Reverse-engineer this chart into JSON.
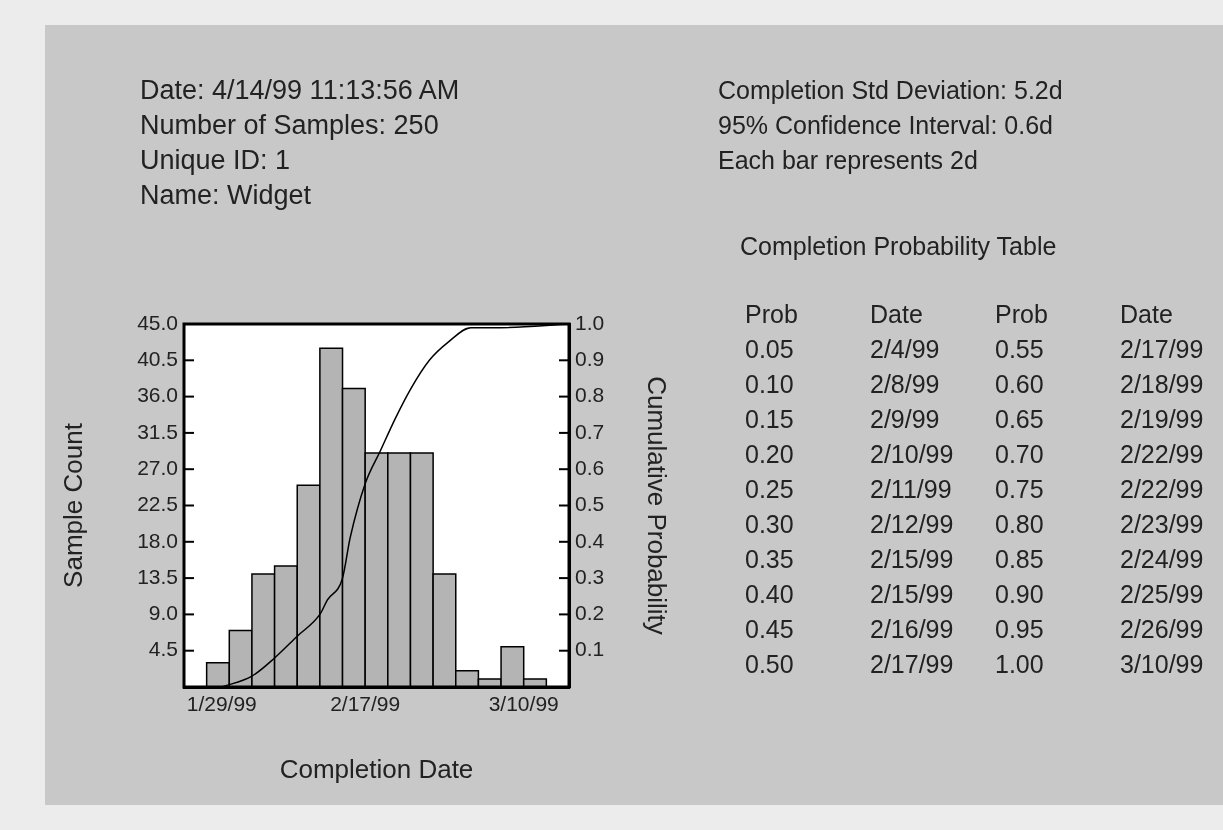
{
  "chart_data": [
    {
      "type": "histogram",
      "xlabel": "Completion Date",
      "ylabel": "Sample Count",
      "y2label": "Cumulative Probability",
      "annotations": [
        "Date: 4/14/99 11:13:56 AM",
        "Number of Samples: 250",
        "Unique ID: 1",
        "Name: Widget",
        "Completion Std Deviation: 5.2d",
        "95% Confidence Interval: 0.6d",
        "Each bar represents 2d"
      ],
      "xlim": [
        "1999-01-24",
        "1999-03-16"
      ],
      "xticks": [
        {
          "value": "1999-01-29",
          "label": "1/29/99"
        },
        {
          "value": "1999-02-17",
          "label": "2/17/99"
        },
        {
          "value": "1999-03-10",
          "label": "3/10/99"
        }
      ],
      "ylim": [
        0,
        45
      ],
      "yticks": [
        4.5,
        {
          "value": 9,
          "label": "9.0"
        },
        13.5,
        {
          "value": 18,
          "label": "18.0"
        },
        22.5,
        {
          "value": 27,
          "label": "27.0"
        },
        31.5,
        {
          "value": 36,
          "label": "36.0"
        },
        40.5,
        {
          "value": 45,
          "label": "45.0"
        }
      ],
      "y2lim": [
        0,
        1
      ],
      "y2ticks": [
        0.1,
        0.2,
        0.3,
        0.4,
        0.5,
        0.6,
        0.7,
        0.8,
        0.9,
        {
          "value": 1,
          "label": "1.0"
        }
      ],
      "series": [
        {
          "type": "histogram",
          "color": "#b4b4b4",
          "bins": [
            "1999-01-27",
            "1999-01-30",
            "1999-02-02",
            "1999-02-05",
            "1999-02-08",
            "1999-02-11",
            "1999-02-14",
            "1999-02-17",
            "1999-02-20",
            "1999-02-23",
            "1999-02-26",
            "1999-03-01",
            "1999-03-04",
            "1999-03-07",
            "1999-03-10",
            "1999-03-13"
          ],
          "values": [
            3,
            7,
            14,
            15,
            25,
            42,
            37,
            29,
            29,
            29,
            14,
            2,
            1,
            5,
            1
          ]
        },
        {
          "type": "line",
          "axis": "y2",
          "color": "#000000",
          "marker": "none",
          "x": [
            "1999-01-29",
            "1999-02-02",
            "1999-02-05",
            "1999-02-08",
            "1999-02-11",
            "1999-02-12",
            "1999-02-14",
            "1999-02-15",
            "1999-02-17",
            "1999-02-19",
            "1999-02-21",
            "1999-02-23",
            "1999-02-25T12:00",
            "1999-02-28",
            "1999-03-03",
            "1999-03-07",
            "1999-03-16"
          ],
          "values": [
            0,
            0.03,
            0.08,
            0.14,
            0.2,
            0.24,
            0.3,
            0.41,
            0.56,
            0.65,
            0.74,
            0.82,
            0.9,
            0.95,
            0.99,
            0.99,
            1
          ]
        }
      ]
    },
    {
      "type": "other",
      "title": "Completion Probability Table",
      "annotations": [
        "Prob",
        "Date",
        "Prob",
        "Date",
        "0.05",
        "2/4/99",
        "0.55",
        "2/17/99",
        "0.10",
        "2/8/99",
        "0.60",
        "2/18/99",
        "0.15",
        "2/9/99",
        "0.65",
        "2/19/99",
        "0.20",
        "2/10/99",
        "0.70",
        "2/22/99",
        "0.25",
        "2/11/99",
        "0.75",
        "2/22/99",
        "0.30",
        "2/12/99",
        "0.80",
        "2/23/99",
        "0.35",
        "2/15/99",
        "0.85",
        "2/24/99",
        "0.40",
        "2/15/99",
        "0.90",
        "2/25/99",
        "0.45",
        "2/16/99",
        "0.95",
        "2/26/99",
        "0.50",
        "2/17/99",
        "1.00",
        "3/10/99"
      ]
    }
  ]
}
